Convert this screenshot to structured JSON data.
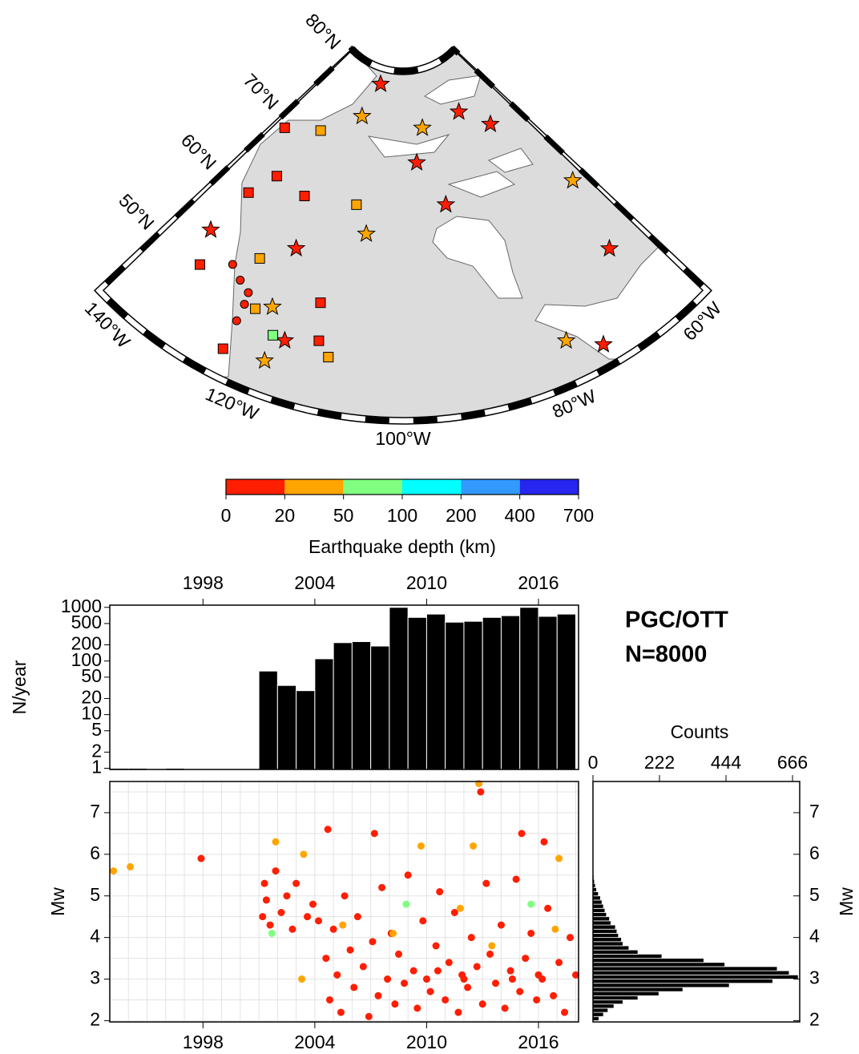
{
  "chart_data": [
    {
      "type": "map",
      "lat_ticks": [
        {
          "value": 80,
          "label": "80°N"
        },
        {
          "value": 70,
          "label": "70°N"
        },
        {
          "value": 60,
          "label": "60°N"
        },
        {
          "value": 50,
          "label": "50°N"
        }
      ],
      "lon_ticks": [
        {
          "value": -140,
          "label": "140°W"
        },
        {
          "value": -120,
          "label": "120°W"
        },
        {
          "value": -100,
          "label": "100°W"
        },
        {
          "value": -80,
          "label": "80°W"
        },
        {
          "value": -60,
          "label": "60°W"
        }
      ],
      "events": {
        "lon": [
          -113.1,
          -117.0,
          -92.5,
          -76.8,
          -69.3,
          -95.8,
          -89.7,
          -62.3,
          -107.8,
          -65.4,
          -77.7,
          -73.7,
          -118.3,
          -116.7,
          -134.8,
          -120.3,
          -120.1,
          -137.4,
          -128.2,
          -133.8,
          -131.1,
          -123.3,
          -111.2,
          -132.7,
          -113.3,
          -112.1,
          -110.3,
          -118.5,
          -123.8,
          -122.3,
          -125.3,
          -126.3,
          -124.0,
          -123.9,
          -124.3,
          -128.6
        ],
        "lat": [
          79.3,
          75.1,
          74.4,
          74.9,
          71.8,
          70.5,
          65.2,
          60.7,
          62.0,
          52.0,
          45.7,
          43.3,
          44.7,
          47.7,
          54.7,
          58.1,
          50.8,
          69.2,
          71.5,
          60.8,
          64.3,
          64.0,
          65.1,
          50.8,
          53.1,
          48.8,
          47.2,
          47.8,
          44.0,
          49.8,
          55.2,
          51.9,
          49.7,
          47.6,
          51.1,
          53.0
        ],
        "depth": [
          10,
          30,
          30,
          10,
          10,
          10,
          10,
          30,
          30,
          10,
          30,
          10,
          30,
          10,
          10,
          10,
          30,
          10,
          30,
          10,
          10,
          10,
          30,
          10,
          10,
          10,
          30,
          70,
          10,
          30,
          30,
          10,
          10,
          10,
          10,
          10
        ],
        "marker": [
          "star",
          "star",
          "star",
          "star",
          "star",
          "star",
          "star",
          "star",
          "star",
          "star",
          "star",
          "star",
          "star",
          "star",
          "star",
          "star",
          "star",
          "square",
          "square",
          "square",
          "square",
          "square",
          "square",
          "square",
          "square",
          "square",
          "square",
          "square",
          "square",
          "square",
          "square",
          "circle",
          "circle",
          "circle",
          "circle",
          "circle"
        ]
      },
      "colorbar": {
        "bounds": [
          0,
          20,
          50,
          100,
          200,
          400,
          700
        ],
        "colors": [
          "#ff1e00",
          "#ffa500",
          "#80ff80",
          "#00ffff",
          "#3399ff",
          "#2626ee"
        ],
        "label": "Earthquake depth (km)"
      }
    },
    {
      "type": "histogram",
      "bins": [
        1993,
        1994,
        1995,
        1996,
        1997,
        1998,
        1999,
        2000,
        2001,
        2002,
        2003,
        2004,
        2005,
        2006,
        2007,
        2008,
        2009,
        2010,
        2011,
        2012,
        2013,
        2014,
        2015,
        2016,
        2017,
        2018
      ],
      "values": [
        1,
        1,
        0,
        1,
        0,
        0,
        0,
        0,
        65,
        35,
        28,
        110,
        220,
        230,
        190,
        1000,
        650,
        750,
        530,
        550,
        650,
        700,
        1000,
        680,
        750
      ],
      "color": "#000000",
      "log_y": true,
      "ylabel": "N/year",
      "ylim": [
        0.95,
        1100
      ],
      "yticks": [
        1,
        2,
        5,
        10,
        20,
        50,
        100,
        200,
        500,
        1000
      ],
      "xlim": [
        1993,
        2018.15
      ],
      "xticks": [
        1998,
        2004,
        2010,
        2016
      ],
      "annotation": [
        "PGC/OTT",
        "N=8000"
      ]
    },
    {
      "type": "scatter",
      "x": [
        1993.2,
        1994.1,
        1997.9,
        2001.9,
        2003.4,
        2003.3,
        2004.7,
        2012.8,
        2012.9,
        2015.1,
        2016.3,
        2007.2,
        2009.7,
        2012.5,
        2017.1,
        2008.9,
        2015.6,
        2001.7,
        2001.2,
        2001.4,
        2001.6,
        2001.9,
        2002.2,
        2002.5,
        2002.8,
        2003.0,
        2003.6,
        2003.9,
        2004.2,
        2001.3,
        2004.6,
        2004.8,
        2005.0,
        2005.2,
        2005.4,
        2005.6,
        2005.9,
        2006.1,
        2006.3,
        2006.6,
        2006.9,
        2007.1,
        2007.4,
        2007.6,
        2007.9,
        2008.1,
        2008.3,
        2008.5,
        2008.8,
        2009.0,
        2009.3,
        2009.5,
        2009.8,
        2010.0,
        2010.2,
        2010.5,
        2010.7,
        2011.0,
        2011.2,
        2011.5,
        2011.7,
        2011.9,
        2012.2,
        2012.4,
        2012.7,
        2013.0,
        2013.2,
        2013.4,
        2013.7,
        2014.0,
        2014.2,
        2014.5,
        2014.8,
        2015.0,
        2015.3,
        2015.6,
        2015.9,
        2016.2,
        2016.5,
        2016.8,
        2017.1,
        2017.4,
        2017.7,
        2018.0,
        2010.6,
        2012.0,
        2014.6,
        2016.0,
        2005.5,
        2008.2,
        2011.8,
        2013.5,
        2016.9
      ],
      "y": [
        5.6,
        5.7,
        5.9,
        6.3,
        6.0,
        3.0,
        6.6,
        7.7,
        7.5,
        6.5,
        6.3,
        6.5,
        6.2,
        6.2,
        5.9,
        4.8,
        4.8,
        4.1,
        4.5,
        4.9,
        4.3,
        5.6,
        4.6,
        5.0,
        4.2,
        5.3,
        4.5,
        4.8,
        4.4,
        5.3,
        3.5,
        2.5,
        4.2,
        3.1,
        2.2,
        5.0,
        3.7,
        2.8,
        4.5,
        3.3,
        2.1,
        3.9,
        2.6,
        5.2,
        3.0,
        4.1,
        2.4,
        3.6,
        2.9,
        5.5,
        3.2,
        2.3,
        4.4,
        3.0,
        2.7,
        3.8,
        5.1,
        2.5,
        3.4,
        4.6,
        2.2,
        3.1,
        2.8,
        4.0,
        3.3,
        2.4,
        5.3,
        3.6,
        2.9,
        4.3,
        2.3,
        3.2,
        5.4,
        2.7,
        3.5,
        4.1,
        2.5,
        3.0,
        4.7,
        2.6,
        3.4,
        2.2,
        4.0,
        3.1,
        3.2,
        3.0,
        3.0,
        3.1,
        4.3,
        4.1,
        4.7,
        3.8,
        4.2
      ],
      "depth": [
        30,
        30,
        10,
        30,
        30,
        30,
        10,
        30,
        10,
        10,
        10,
        10,
        30,
        30,
        30,
        70,
        70,
        70,
        10,
        10,
        10,
        10,
        10,
        10,
        10,
        10,
        10,
        10,
        10,
        10,
        10,
        10,
        10,
        10,
        10,
        10,
        10,
        10,
        10,
        10,
        10,
        10,
        10,
        10,
        10,
        10,
        10,
        10,
        10,
        10,
        10,
        10,
        10,
        10,
        10,
        10,
        10,
        10,
        10,
        10,
        10,
        10,
        10,
        10,
        10,
        10,
        10,
        10,
        10,
        10,
        10,
        10,
        10,
        10,
        10,
        10,
        10,
        10,
        10,
        10,
        10,
        10,
        10,
        10,
        10,
        10,
        10,
        10,
        30,
        30,
        30,
        30,
        30
      ],
      "xlim": [
        1993,
        2018.15
      ],
      "xticks": [
        1998,
        2004,
        2010,
        2016
      ],
      "ylim": [
        1.97,
        7.75
      ],
      "yticks": [
        2,
        3,
        4,
        5,
        6,
        7
      ],
      "ylabel": "Mw",
      "grid": true,
      "xgrid": [
        1994,
        1995,
        1996,
        1997,
        1998,
        1999,
        2000,
        2001,
        2002,
        2003,
        2004,
        2005,
        2006,
        2007,
        2008,
        2009,
        2010,
        2011,
        2012,
        2013,
        2014,
        2015,
        2016,
        2017,
        2018
      ],
      "ygrid": [
        2,
        2.5,
        3,
        3.5,
        4,
        4.5,
        5,
        5.5,
        6,
        6.5,
        7,
        7.5
      ]
    },
    {
      "type": "histogram",
      "orientation": "horizontal",
      "bins": [
        2.0,
        2.1,
        2.2,
        2.3,
        2.4,
        2.5,
        2.6,
        2.7,
        2.8,
        2.9,
        3.0,
        3.1,
        3.2,
        3.3,
        3.4,
        3.5,
        3.6,
        3.7,
        3.8,
        3.9,
        4.0,
        4.1,
        4.2,
        4.3,
        4.4,
        4.5,
        4.6,
        4.7,
        4.8,
        4.9,
        5.0,
        5.1,
        5.2,
        5.3,
        5.4,
        5.5,
        5.6,
        5.7,
        5.8,
        5.9,
        6.0,
        6.1,
        6.2,
        6.3,
        6.4
      ],
      "values": [
        20,
        35,
        50,
        70,
        100,
        150,
        220,
        300,
        455,
        600,
        685,
        655,
        615,
        440,
        370,
        230,
        150,
        120,
        100,
        95,
        85,
        80,
        75,
        60,
        55,
        45,
        40,
        35,
        30,
        25,
        18,
        12,
        8,
        5,
        3,
        2,
        2,
        2,
        1,
        2,
        1,
        1,
        1,
        1
      ],
      "color": "#000000",
      "xlabel": "Counts",
      "xlim": [
        0,
        690
      ],
      "xticks": [
        0,
        222,
        444,
        666
      ],
      "ylim": [
        1.97,
        7.75
      ],
      "yticks": [
        2,
        3,
        4,
        5,
        6,
        7
      ],
      "ylabel": "Mw"
    }
  ]
}
